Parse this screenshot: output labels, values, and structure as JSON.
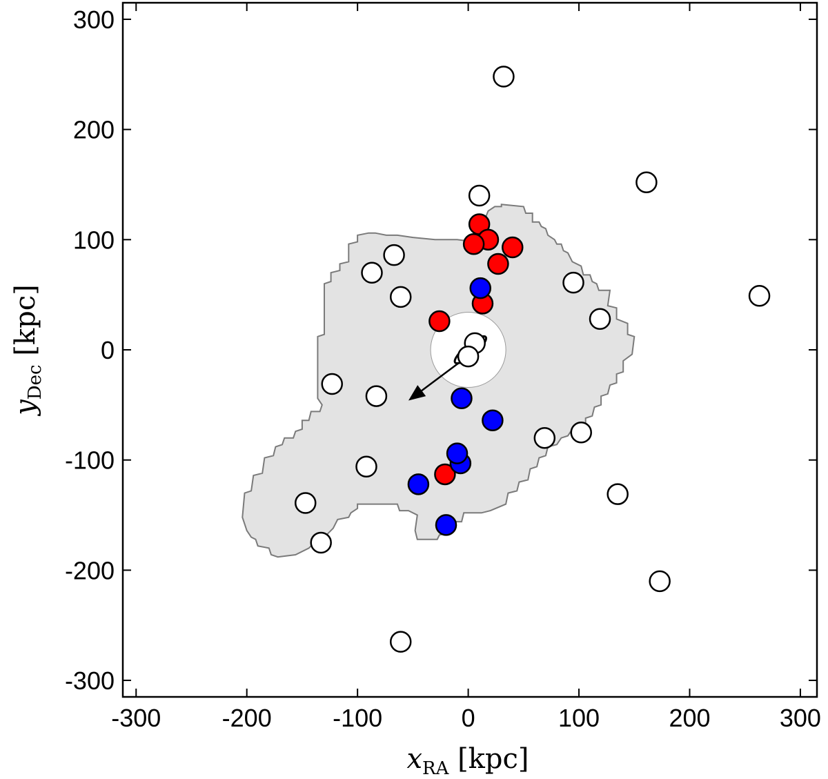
{
  "chart_data": {
    "type": "scatter",
    "xlabel": {
      "main": "x",
      "sub": "RA",
      "unit": "[kpc]"
    },
    "ylabel": {
      "main": "y",
      "sub": "Dec",
      "unit": "[kpc]"
    },
    "xlim": [
      -312,
      315
    ],
    "ylim": [
      -315,
      315
    ],
    "xticks": [
      -300,
      -200,
      -100,
      0,
      100,
      200,
      300
    ],
    "yticks": [
      -300,
      -200,
      -100,
      0,
      100,
      200,
      300
    ],
    "grid": false,
    "colors": {
      "survey_footprint": "#e3e3e3",
      "footprint_edge": "#7a7a7a",
      "co_rotating": "#ff0000",
      "counter_rotating": "#0000ff",
      "no_velocity": "#ffffff",
      "outline": "#000000"
    },
    "survey_footprint": [
      [
        -204,
        -152
      ],
      [
        -202,
        -130
      ],
      [
        -196,
        -128
      ],
      [
        -194,
        -114
      ],
      [
        -186,
        -112
      ],
      [
        -184,
        -98
      ],
      [
        -176,
        -96
      ],
      [
        -174,
        -88
      ],
      [
        -168,
        -86
      ],
      [
        -166,
        -80
      ],
      [
        -158,
        -80
      ],
      [
        -156,
        -74
      ],
      [
        -150,
        -72
      ],
      [
        -150,
        -64
      ],
      [
        -144,
        -64
      ],
      [
        -142,
        -56
      ],
      [
        -134,
        -56
      ],
      [
        -132,
        -50
      ],
      [
        -136,
        -44
      ],
      [
        -136,
        12
      ],
      [
        -130,
        14
      ],
      [
        -130,
        60
      ],
      [
        -124,
        62
      ],
      [
        -124,
        70
      ],
      [
        -116,
        72
      ],
      [
        -116,
        78
      ],
      [
        -108,
        80
      ],
      [
        -108,
        96
      ],
      [
        -100,
        98
      ],
      [
        -100,
        104
      ],
      [
        -90,
        106
      ],
      [
        -84,
        106
      ],
      [
        -74,
        104
      ],
      [
        -64,
        104
      ],
      [
        -50,
        102
      ],
      [
        -30,
        100
      ],
      [
        -10,
        100
      ],
      [
        6,
        98
      ],
      [
        8,
        112
      ],
      [
        14,
        116
      ],
      [
        18,
        126
      ],
      [
        24,
        130
      ],
      [
        30,
        130
      ],
      [
        30,
        132
      ],
      [
        50,
        130
      ],
      [
        52,
        124
      ],
      [
        58,
        124
      ],
      [
        58,
        116
      ],
      [
        64,
        116
      ],
      [
        66,
        112
      ],
      [
        70,
        110
      ],
      [
        72,
        104
      ],
      [
        78,
        100
      ],
      [
        80,
        96
      ],
      [
        84,
        96
      ],
      [
        86,
        90
      ],
      [
        90,
        88
      ],
      [
        94,
        80
      ],
      [
        102,
        76
      ],
      [
        104,
        68
      ],
      [
        110,
        68
      ],
      [
        112,
        62
      ],
      [
        116,
        60
      ],
      [
        118,
        54
      ],
      [
        128,
        54
      ],
      [
        126,
        40
      ],
      [
        134,
        38
      ],
      [
        134,
        28
      ],
      [
        144,
        24
      ],
      [
        144,
        14
      ],
      [
        150,
        12
      ],
      [
        148,
        -4
      ],
      [
        140,
        -10
      ],
      [
        140,
        -20
      ],
      [
        134,
        -22
      ],
      [
        134,
        -30
      ],
      [
        128,
        -32
      ],
      [
        126,
        -40
      ],
      [
        120,
        -42
      ],
      [
        120,
        -50
      ],
      [
        114,
        -52
      ],
      [
        112,
        -60
      ],
      [
        106,
        -62
      ],
      [
        106,
        -70
      ],
      [
        94,
        -72
      ],
      [
        90,
        -78
      ],
      [
        84,
        -80
      ],
      [
        80,
        -86
      ],
      [
        72,
        -88
      ],
      [
        70,
        -96
      ],
      [
        64,
        -98
      ],
      [
        62,
        -106
      ],
      [
        56,
        -108
      ],
      [
        54,
        -118
      ],
      [
        46,
        -120
      ],
      [
        44,
        -128
      ],
      [
        36,
        -130
      ],
      [
        34,
        -140
      ],
      [
        20,
        -146
      ],
      [
        12,
        -148
      ],
      [
        6,
        -148
      ],
      [
        -4,
        -148
      ],
      [
        -6,
        -156
      ],
      [
        -14,
        -156
      ],
      [
        -16,
        -166
      ],
      [
        -26,
        -168
      ],
      [
        -28,
        -172
      ],
      [
        -46,
        -172
      ],
      [
        -48,
        -164
      ],
      [
        -46,
        -150
      ],
      [
        -54,
        -146
      ],
      [
        -62,
        -146
      ],
      [
        -64,
        -140
      ],
      [
        -100,
        -140
      ],
      [
        -100,
        -144
      ],
      [
        -106,
        -148
      ],
      [
        -108,
        -152
      ],
      [
        -118,
        -154
      ],
      [
        -122,
        -162
      ],
      [
        -128,
        -168
      ],
      [
        -134,
        -170
      ],
      [
        -140,
        -176
      ],
      [
        -144,
        -180
      ],
      [
        -156,
        -186
      ],
      [
        -172,
        -188
      ],
      [
        -178,
        -186
      ],
      [
        -180,
        -180
      ],
      [
        -190,
        -178
      ],
      [
        -192,
        -172
      ],
      [
        -196,
        -170
      ],
      [
        -200,
        -164
      ]
    ],
    "exclusion_radius": 34,
    "arrow": {
      "from": [
        2,
        -4
      ],
      "to": [
        -54,
        -46
      ]
    },
    "central_galaxy_ellipse": {
      "cx": 2,
      "cy": 0,
      "rx": 18,
      "ry": 5,
      "angle_deg": 40
    },
    "series": [
      {
        "name": "",
        "color": "#ff0000",
        "points": [
          [
            10,
            114
          ],
          [
            18,
            100
          ],
          [
            5,
            96
          ],
          [
            40,
            93
          ],
          [
            27,
            78
          ],
          [
            13,
            42
          ],
          [
            -26,
            26
          ],
          [
            -21,
            -113
          ]
        ]
      },
      {
        "name": "",
        "color": "#0000ff",
        "points": [
          [
            11,
            56
          ],
          [
            -6,
            -44
          ],
          [
            22,
            -64
          ],
          [
            -7,
            -103
          ],
          [
            -10,
            -94
          ],
          [
            -45,
            -122
          ],
          [
            -20,
            -159
          ]
        ]
      },
      {
        "name": "",
        "color": "#ffffff",
        "points": [
          [
            32,
            248
          ],
          [
            161,
            152
          ],
          [
            10,
            140
          ],
          [
            263,
            49
          ],
          [
            -67,
            86
          ],
          [
            -87,
            70
          ],
          [
            -61,
            48
          ],
          [
            95,
            61
          ],
          [
            119,
            28
          ],
          [
            6,
            6
          ],
          [
            0,
            -6
          ],
          [
            -123,
            -31
          ],
          [
            -83,
            -42
          ],
          [
            69,
            -80
          ],
          [
            102,
            -75
          ],
          [
            -92,
            -106
          ],
          [
            135,
            -131
          ],
          [
            -147,
            -139
          ],
          [
            -133,
            -175
          ],
          [
            173,
            -210
          ],
          [
            -61,
            -265
          ]
        ]
      }
    ]
  }
}
